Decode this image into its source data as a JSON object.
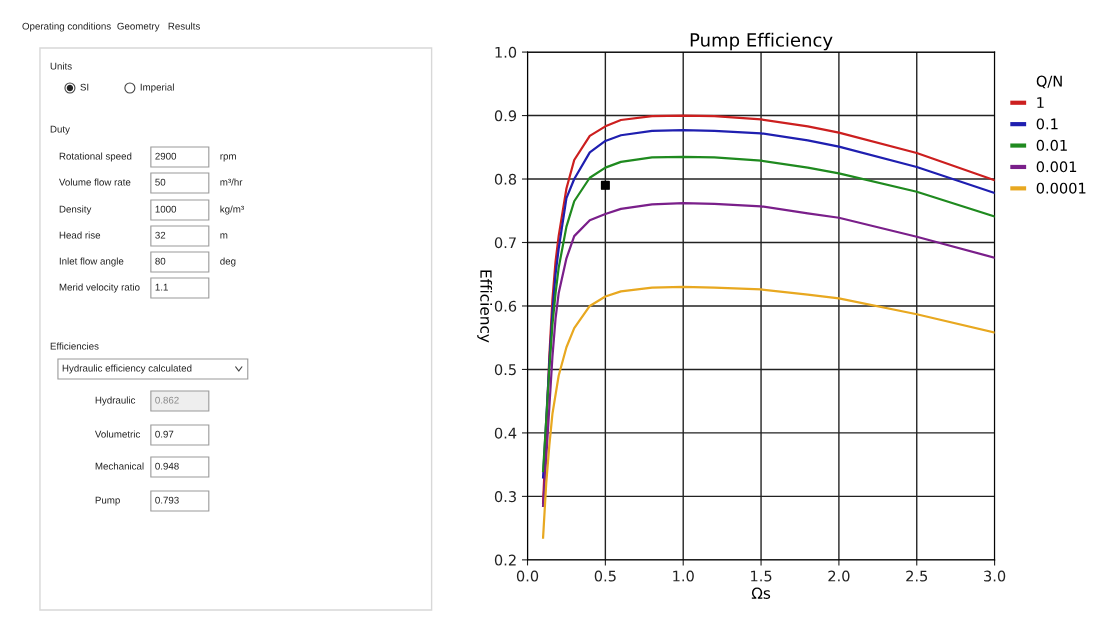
{
  "chart_data": [
    {
      "type": "other",
      "annotations": [
        "Operating conditions",
        "Geometry",
        "Results",
        "Units",
        "SI",
        "Imperial",
        "Duty",
        "Rotational speed",
        "2900",
        "rpm",
        "Volume flow rate",
        "50",
        "m³/hr",
        "Density",
        "1000",
        "kg/m³",
        "Head rise",
        "32",
        "m",
        "Inlet flow angle",
        "80",
        "deg",
        "Merid velocity ratio",
        "1.1",
        "Efficiencies",
        "Hydraulic efficiency calculated",
        "Hydraulic",
        "0.862",
        "Volumetric",
        "0.97",
        "Mechanical",
        "0.948",
        "Pump",
        "0.793"
      ]
    },
    {
      "type": "line",
      "title": "Pump Efficiency",
      "xlabel": "Ωs",
      "ylabel": "Efficiency",
      "legend_title": "Q/N",
      "legend": "right",
      "grid": true,
      "marker": "none",
      "line_style": "solid",
      "xlim": [
        0.0,
        3.0
      ],
      "xticks": [
        {
          "value": 0,
          "label": "0.0"
        },
        0.5,
        {
          "value": 1,
          "label": "1.0"
        },
        1.5,
        {
          "value": 2,
          "label": "2.0"
        },
        2.5,
        {
          "value": 3,
          "label": "3.0"
        }
      ],
      "ylim": [
        0.2,
        1.0
      ],
      "yticks": [
        0.2,
        0.3,
        0.4,
        0.5,
        0.6,
        0.7,
        0.8,
        0.9,
        {
          "value": 1,
          "label": "1.0"
        }
      ],
      "series": [
        {
          "name": "1",
          "color": "#cc1f1f",
          "x": [
            0.1,
            0.12,
            0.14,
            0.16,
            0.18,
            0.2,
            0.25,
            0.3,
            0.4,
            0.5,
            0.6,
            0.8,
            1.0,
            1.2,
            1.5,
            1.8,
            2.0,
            2.5,
            3.0
          ],
          "values": [
            0.29,
            0.4,
            0.52,
            0.61,
            0.67,
            0.71,
            0.785,
            0.83,
            0.868,
            0.883,
            0.893,
            0.899,
            0.9,
            0.899,
            0.894,
            0.883,
            0.873,
            0.841,
            0.798
          ]
        },
        {
          "name": "0.1",
          "color": "#1f1fb0",
          "x": [
            0.1,
            0.12,
            0.14,
            0.16,
            0.18,
            0.2,
            0.25,
            0.3,
            0.4,
            0.5,
            0.6,
            0.8,
            1.0,
            1.2,
            1.5,
            1.8,
            2.0,
            2.5,
            3.0
          ],
          "values": [
            0.33,
            0.42,
            0.51,
            0.59,
            0.65,
            0.69,
            0.77,
            0.8,
            0.842,
            0.86,
            0.869,
            0.876,
            0.877,
            0.876,
            0.872,
            0.861,
            0.851,
            0.819,
            0.778
          ]
        },
        {
          "name": "0.01",
          "color": "#1f8a1f",
          "x": [
            0.1,
            0.12,
            0.14,
            0.16,
            0.18,
            0.2,
            0.25,
            0.3,
            0.4,
            0.5,
            0.6,
            0.8,
            1.0,
            1.2,
            1.5,
            1.8,
            2.0,
            2.5,
            3.0
          ],
          "values": [
            0.34,
            0.42,
            0.5,
            0.57,
            0.62,
            0.66,
            0.725,
            0.765,
            0.802,
            0.818,
            0.827,
            0.834,
            0.835,
            0.834,
            0.829,
            0.818,
            0.809,
            0.78,
            0.741
          ]
        },
        {
          "name": "0.001",
          "color": "#7a1f8a",
          "x": [
            0.1,
            0.12,
            0.14,
            0.16,
            0.18,
            0.2,
            0.25,
            0.3,
            0.4,
            0.5,
            0.6,
            0.8,
            1.0,
            1.2,
            1.5,
            1.8,
            2.0,
            2.5,
            3.0
          ],
          "values": [
            0.285,
            0.36,
            0.44,
            0.52,
            0.58,
            0.62,
            0.675,
            0.71,
            0.735,
            0.745,
            0.753,
            0.76,
            0.762,
            0.761,
            0.757,
            0.746,
            0.739,
            0.709,
            0.676
          ]
        },
        {
          "name": "0.0001",
          "color": "#e8a820",
          "x": [
            0.1,
            0.12,
            0.14,
            0.16,
            0.2,
            0.25,
            0.3,
            0.4,
            0.5,
            0.6,
            0.8,
            1.0,
            1.2,
            1.5,
            1.8,
            2.0,
            2.5,
            3.0
          ],
          "values": [
            0.235,
            0.32,
            0.38,
            0.43,
            0.49,
            0.535,
            0.565,
            0.6,
            0.615,
            0.623,
            0.629,
            0.63,
            0.629,
            0.626,
            0.618,
            0.612,
            0.587,
            0.558
          ]
        },
        {
          "type": "scatter",
          "marker": "square",
          "color": "#000000",
          "x": [
            0.5
          ],
          "values": [
            0.79
          ]
        }
      ]
    }
  ]
}
